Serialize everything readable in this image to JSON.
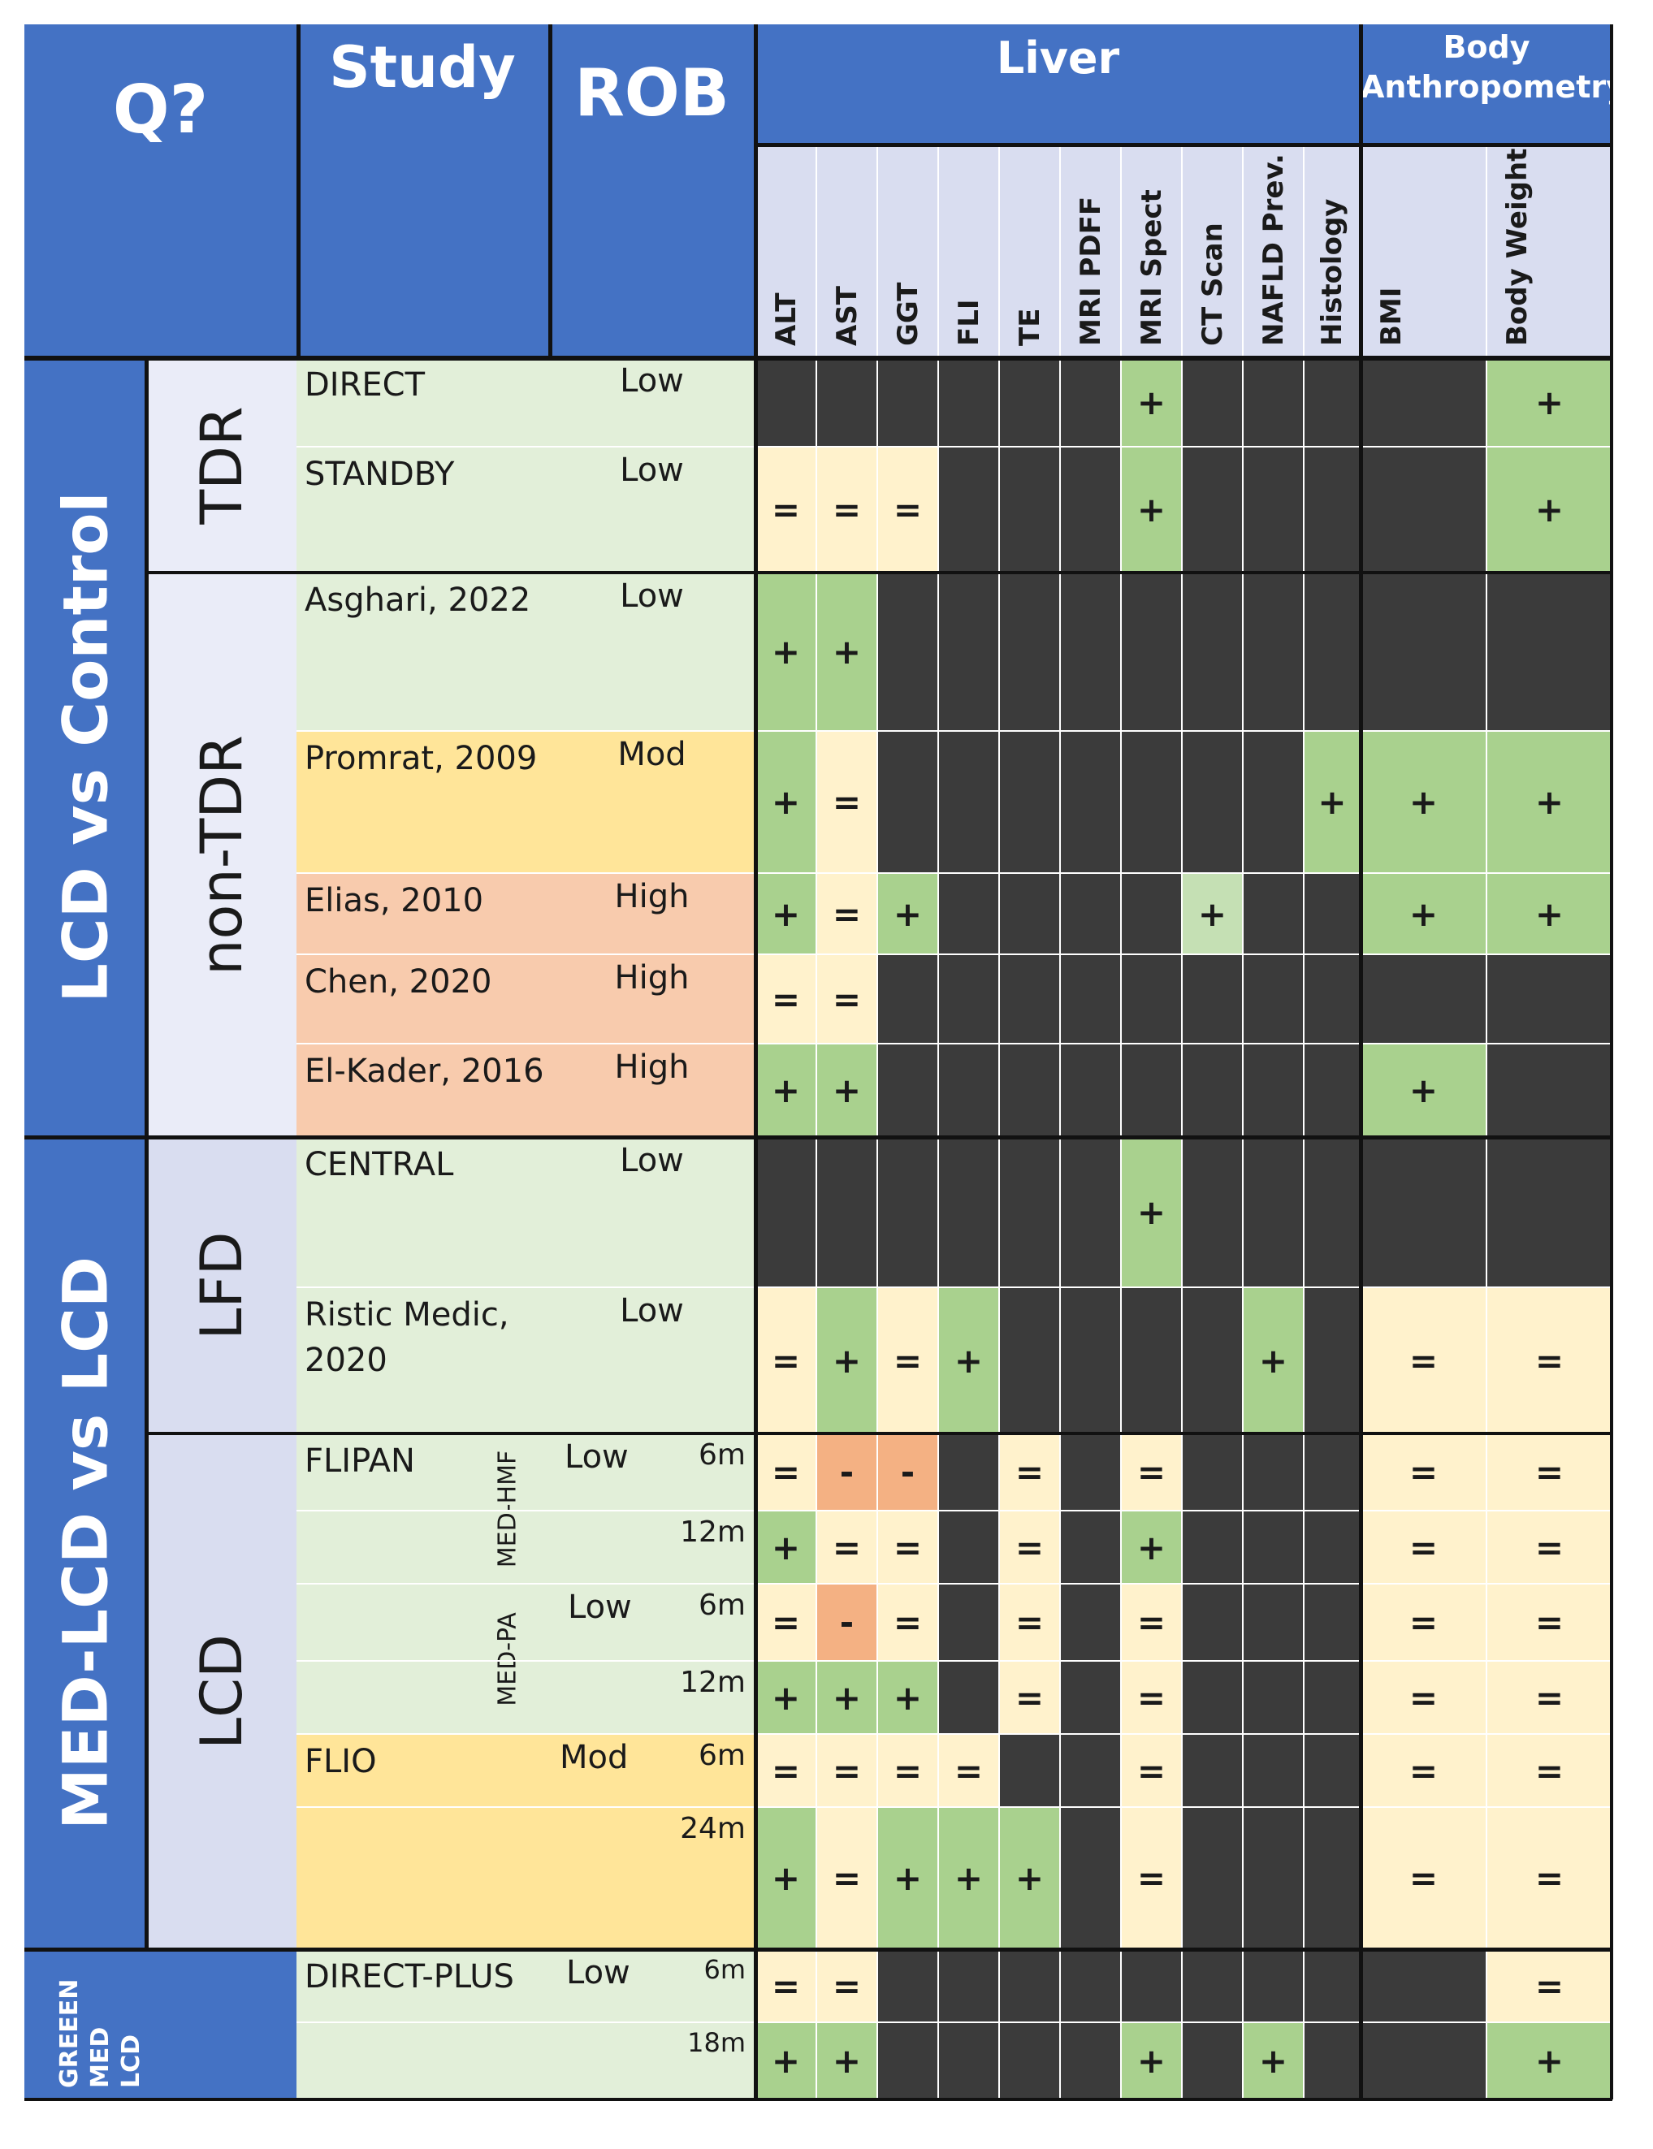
{
  "headers": {
    "q": "Q?",
    "study": "Study",
    "rob": "ROB",
    "liver": "Liver",
    "body_line1": "Body",
    "body_line2": "Anthropometry"
  },
  "columns": [
    "ALT",
    "AST",
    "GGT",
    "FLI",
    "TE",
    "MRI PDFF",
    "MRI Spect",
    "CT Scan",
    "NAFLD Prev.",
    "Histology",
    "BMI",
    "Body Weight"
  ],
  "groups": {
    "g1": "LCD vs Control",
    "g2": "MED-LCD vs LCD",
    "g3_line1": "GREEEN",
    "g3_line2": "MED",
    "g3_line3": "LCD"
  },
  "subgroups": {
    "tdr": "TDR",
    "nontdr": "non-TDR",
    "lfd": "LFD",
    "lcd": "LCD"
  },
  "arms": {
    "med_hmf": "MED-HMF",
    "med_pa": "MED-PA"
  },
  "studies": [
    {
      "name": "DIRECT",
      "rob": "Low"
    },
    {
      "name": "STANDBY",
      "rob": "Low"
    },
    {
      "name": "Asghari, 2022",
      "rob": "Low"
    },
    {
      "name": "Promrat, 2009",
      "rob": "Mod"
    },
    {
      "name": "Elias, 2010",
      "rob": "High"
    },
    {
      "name": "Chen, 2020",
      "rob": "High"
    },
    {
      "name": "El-Kader, 2016",
      "rob": "High"
    },
    {
      "name": "CENTRAL",
      "rob": "Low"
    },
    {
      "name": "Ristic Medic,",
      "name2": "2020",
      "rob": "Low"
    },
    {
      "name": "FLIPAN",
      "rob_hmf": "Low",
      "rob_pa": "Low"
    },
    {
      "name": "FLIO",
      "rob": "Mod"
    },
    {
      "name": "DIRECT-PLUS",
      "rob": "Low"
    }
  ],
  "timepoints": [
    "6m",
    "12m",
    "6m",
    "12m",
    "6m",
    "24m",
    "6m",
    "18m"
  ],
  "legend_colors": {
    "positive": "#a9d18e",
    "positive_light": "#c5e0b4",
    "neutral": "#fff2cc",
    "negative": "#f4b183",
    "not_reported": "#3b3b3b",
    "rob_low": "#e2efd9",
    "rob_mod": "#ffe599",
    "rob_high": "#f8cbad",
    "header_blue": "#4472c4"
  },
  "grid": [
    [
      "n",
      "n",
      "n",
      "n",
      "n",
      "n",
      "+",
      "n",
      "n",
      "n",
      "n",
      "+"
    ],
    [
      "=",
      "=",
      "=",
      "n",
      "n",
      "n",
      "+",
      "n",
      "n",
      "n",
      "n",
      "+"
    ],
    [
      "+",
      "+",
      "n",
      "n",
      "n",
      "n",
      "n",
      "n",
      "n",
      "n",
      "n",
      "n"
    ],
    [
      "+",
      "=",
      "n",
      "n",
      "n",
      "n",
      "n",
      "n",
      "n",
      "+",
      "+",
      "+"
    ],
    [
      "+",
      "=",
      "+",
      "n",
      "n",
      "n",
      "n",
      "+l",
      "n",
      "n",
      "+",
      "+"
    ],
    [
      "=",
      "=",
      "n",
      "n",
      "n",
      "n",
      "n",
      "n",
      "n",
      "n",
      "n",
      "n"
    ],
    [
      "+",
      "+",
      "n",
      "n",
      "n",
      "n",
      "n",
      "n",
      "n",
      "n",
      "+",
      "n"
    ],
    [
      "n",
      "n",
      "n",
      "n",
      "n",
      "n",
      "+",
      "n",
      "n",
      "n",
      "n",
      "n"
    ],
    [
      "=",
      "+",
      "=",
      "+",
      "n",
      "n",
      "n",
      "n",
      "+",
      "n",
      "=",
      "="
    ],
    [
      "=",
      "-",
      "-",
      "n",
      "=",
      "n",
      "=",
      "n",
      "n",
      "n",
      "=",
      "="
    ],
    [
      "+",
      "=",
      "=",
      "n",
      "=",
      "n",
      "+",
      "n",
      "n",
      "n",
      "=",
      "="
    ],
    [
      "=",
      "-",
      "=",
      "n",
      "=",
      "n",
      "=",
      "n",
      "n",
      "n",
      "=",
      "="
    ],
    [
      "+",
      "+",
      "+",
      "n",
      "=",
      "n",
      "=",
      "n",
      "n",
      "n",
      "=",
      "="
    ],
    [
      "=",
      "=",
      "=",
      "=",
      "n",
      "n",
      "=",
      "n",
      "n",
      "n",
      "=",
      "="
    ],
    [
      "+",
      "=",
      "+",
      "+",
      "+",
      "n",
      "=",
      "n",
      "n",
      "n",
      "=",
      "="
    ],
    [
      "=",
      "=",
      "n",
      "n",
      "n",
      "n",
      "n",
      "n",
      "n",
      "n",
      "n",
      "="
    ],
    [
      "+",
      "+",
      "n",
      "n",
      "n",
      "n",
      "+",
      "n",
      "+",
      "n",
      "n",
      "+"
    ]
  ]
}
